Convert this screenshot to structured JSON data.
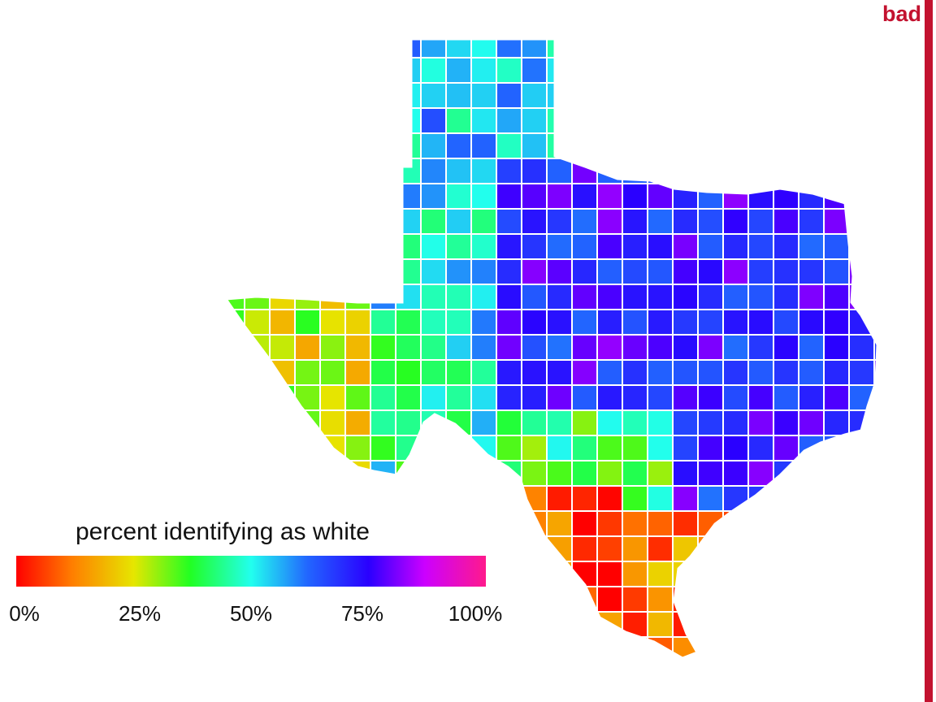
{
  "verdict": "bad",
  "colors": {
    "verdict": "#c3122f",
    "county_border": "#ffffff",
    "background": "#ffffff"
  },
  "legend": {
    "title": "percent identifying as white",
    "scale": "rainbow",
    "ticks": [
      "0%",
      "25%",
      "50%",
      "75%",
      "100%"
    ],
    "tick_values": [
      0,
      25,
      50,
      75,
      100
    ]
  },
  "map": {
    "region": "Texas",
    "unit": "county",
    "variable": "percent identifying as white",
    "pattern": "low values (red/orange) along the southern Rio Grande border and far west; mid values (green/cyan) in the Panhandle and central-west; high values (blue/violet/magenta) across the north, central and east"
  },
  "chart_data": {
    "type": "heatmap",
    "title": "",
    "legend_title": "percent identifying as white",
    "color_scale": "rainbow",
    "range": [
      0,
      100
    ],
    "ticks": [
      "0%",
      "25%",
      "50%",
      "75%",
      "100%"
    ]
  }
}
